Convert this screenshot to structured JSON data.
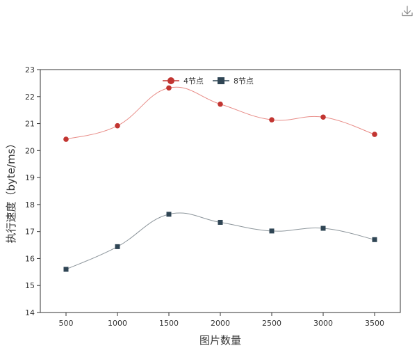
{
  "toolbar": {
    "download_icon": "download-icon"
  },
  "chart_data": {
    "type": "line",
    "title": "",
    "xlabel": "图片数量",
    "ylabel": "执行速度（byte/ms）",
    "x": [
      500,
      1000,
      1500,
      2000,
      2500,
      3000,
      3500
    ],
    "xlim": [
      250,
      3750
    ],
    "ylim": [
      14,
      23
    ],
    "y_ticks": [
      14,
      15,
      16,
      17,
      18,
      19,
      20,
      21,
      22,
      23
    ],
    "grid": false,
    "smooth": true,
    "legend_position": "top-center",
    "series": [
      {
        "name": "4节点",
        "marker": "circle",
        "color": "#c23531",
        "line_color": "#e88b86",
        "values": [
          20.42,
          20.92,
          22.32,
          21.72,
          21.14,
          21.24,
          20.6
        ]
      },
      {
        "name": "8节点",
        "marker": "square",
        "color": "#2f4554",
        "line_color": "#8c959b",
        "values": [
          15.6,
          16.44,
          17.64,
          17.34,
          17.02,
          17.12,
          16.7
        ]
      }
    ]
  }
}
